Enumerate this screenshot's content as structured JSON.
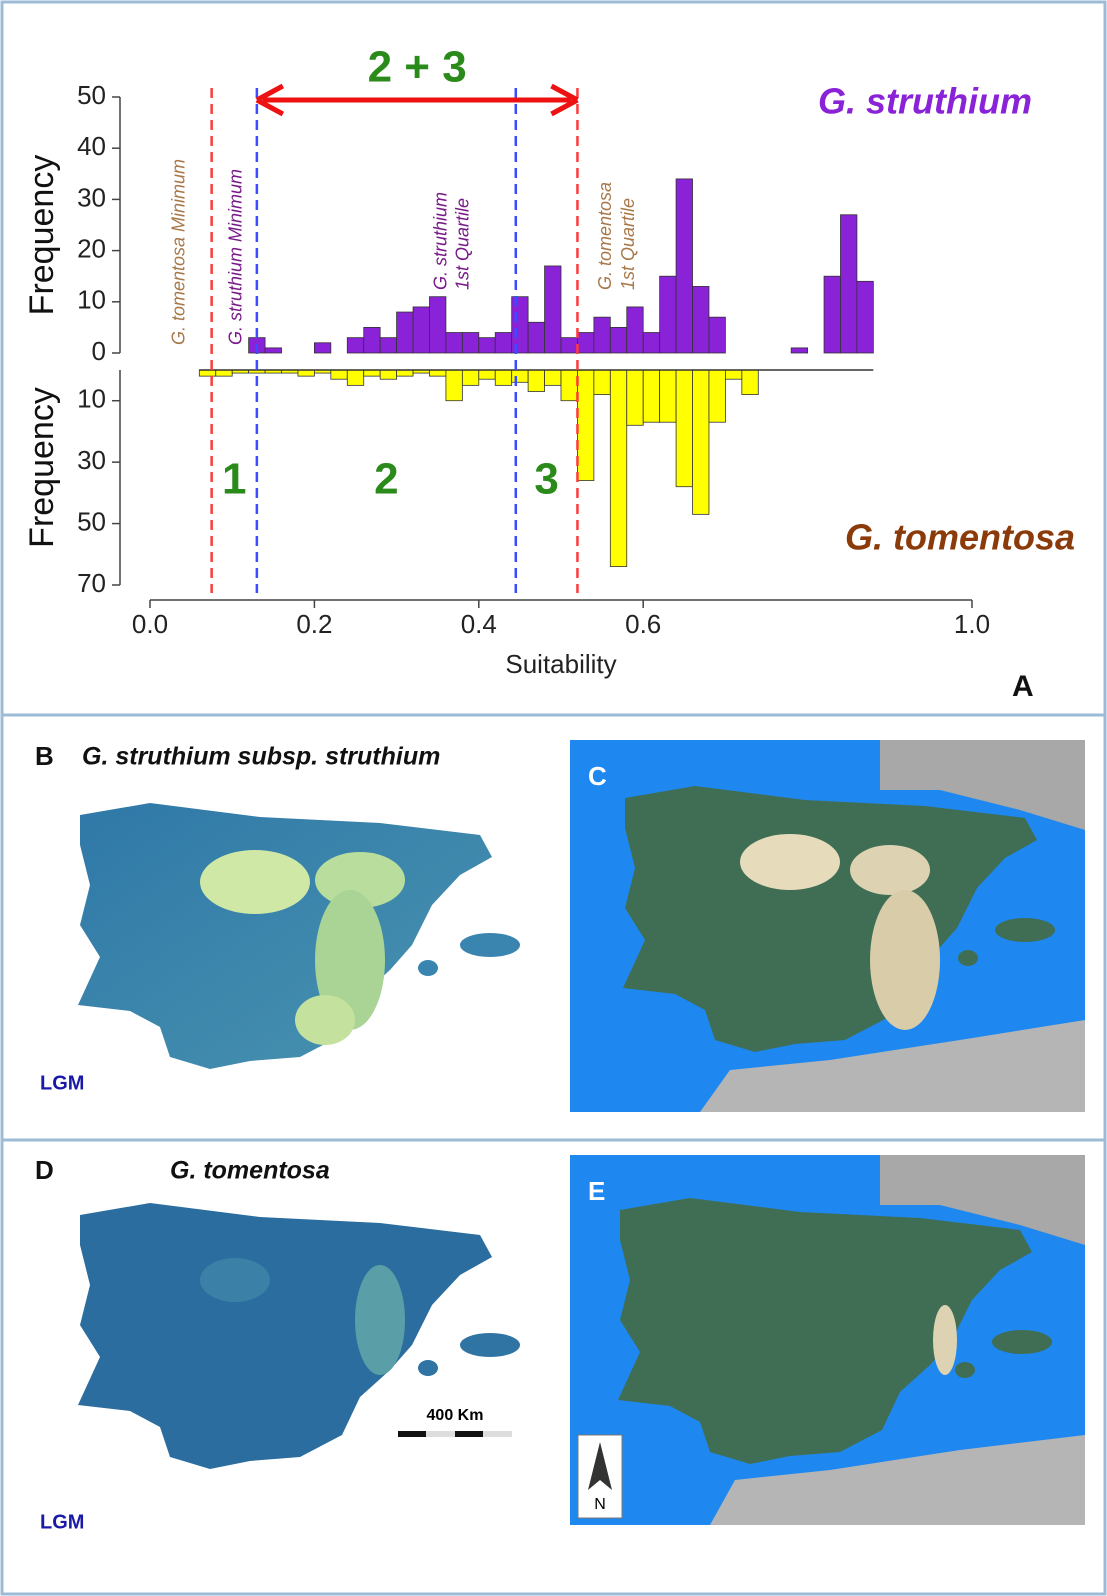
{
  "chart_data": {
    "type": "mirrored-histogram",
    "xlabel": "Suitability",
    "xlim": [
      0,
      1
    ],
    "xticks": [
      {
        "value": 0,
        "label": "0.0"
      },
      0.2,
      0.4,
      0.6,
      {
        "value": 1,
        "label": "1.0"
      }
    ],
    "ylabel": "Frequency",
    "ylim": [
      0,
      50
    ],
    "yticks": [
      0,
      10,
      20,
      30,
      40,
      50
    ],
    "y2label": "Frequency",
    "y2lim": [
      0,
      70
    ],
    "y2ticks": [
      10,
      30,
      50,
      70
    ],
    "bins": [
      0.06,
      0.08,
      0.1,
      0.12,
      0.14,
      0.16,
      0.18,
      0.2,
      0.22,
      0.24,
      0.26,
      0.28,
      0.3,
      0.32,
      0.34,
      0.36,
      0.38,
      0.4,
      0.42,
      0.44,
      0.46,
      0.48,
      0.5,
      0.52,
      0.54,
      0.56,
      0.58,
      0.6,
      0.62,
      0.64,
      0.66,
      0.68,
      0.7,
      0.72,
      0.74,
      0.76,
      0.78,
      0.8,
      0.82,
      0.84,
      0.86,
      0.88
    ],
    "series": [
      {
        "name": "G. struthium",
        "color": "#8a22d8",
        "values": [
          0,
          0,
          0,
          3,
          1,
          0,
          0,
          2,
          0,
          3,
          5,
          3,
          8,
          9,
          11,
          4,
          4,
          3,
          4,
          11,
          6,
          17,
          3,
          4,
          7,
          5,
          9,
          4,
          15,
          34,
          13,
          7,
          0,
          0,
          0,
          0,
          1,
          0,
          15,
          27,
          14
        ]
      },
      {
        "name": "G. tomentosa",
        "color": "#ffff00",
        "axis": "y2",
        "values": [
          2,
          2,
          1,
          1,
          1,
          1,
          2,
          1,
          3,
          5,
          2,
          3,
          2,
          1,
          2,
          10,
          5,
          3,
          5,
          4,
          7,
          5,
          10,
          36,
          8,
          64,
          18,
          17,
          17,
          38,
          47,
          17,
          3,
          8,
          0,
          0,
          0,
          0,
          0,
          0,
          0
        ]
      }
    ],
    "markers": [
      {
        "value": 0.075,
        "color": "#ff3b3b",
        "label_lines": [
          "G. tomentosa Minimum"
        ]
      },
      {
        "value": 0.13,
        "color": "#3b4bff",
        "label_lines": [
          "G. struthium Minimum"
        ]
      },
      {
        "value": 0.445,
        "color": "#3b4bff",
        "label_lines": [
          "G. struthium",
          "1st Quartile"
        ]
      },
      {
        "value": 0.52,
        "color": "#ff3b3b",
        "label_lines": [
          "G. tomentosa",
          "1st Quartile"
        ]
      }
    ],
    "zones": [
      "1",
      "2",
      "3"
    ],
    "span_label": "2 + 3"
  },
  "panel_a_letter": "A",
  "panels": [
    {
      "letter": "B",
      "title": "G. struthium subsp. struthium",
      "period": "LGM"
    },
    {
      "letter": "C"
    },
    {
      "letter": "D",
      "title": "G. tomentosa",
      "period": "LGM",
      "scale": "400 Km"
    },
    {
      "letter": "E",
      "north": "N"
    }
  ]
}
